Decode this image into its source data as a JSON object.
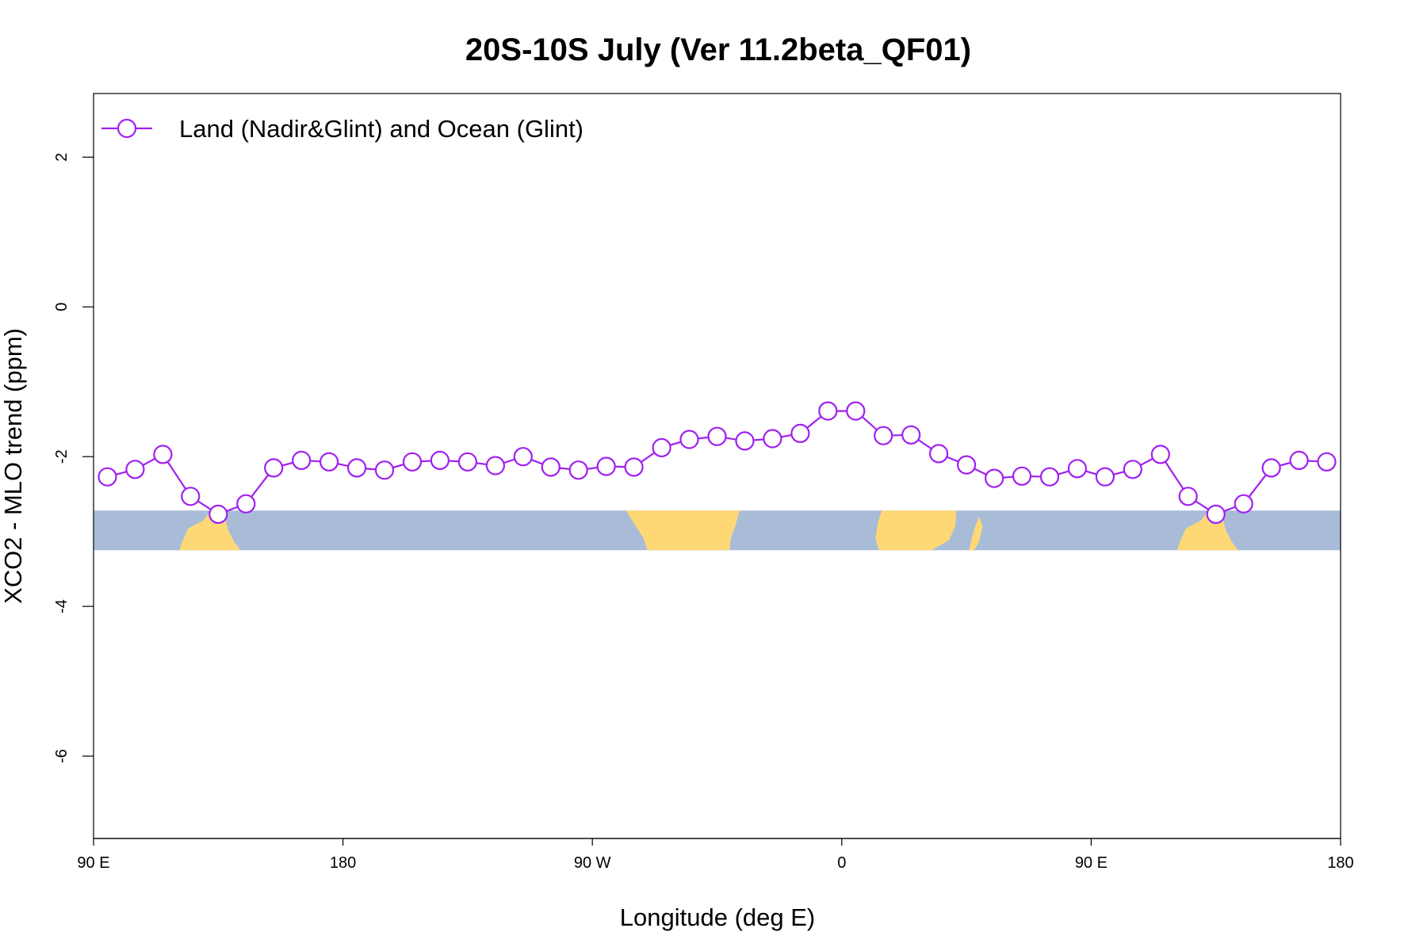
{
  "chart_data": {
    "type": "line",
    "title": "20S-10S July (Ver 11.2beta_QF01)",
    "xlabel": "Longitude (deg E)",
    "ylabel": "XCO2 - MLO trend (ppm)",
    "xlim": [
      90,
      540
    ],
    "ylim": [
      -7.1,
      2.85
    ],
    "xticks": [
      {
        "value": 90,
        "label": "90 E"
      },
      {
        "value": 180,
        "label": "180"
      },
      {
        "value": 270,
        "label": "90 W"
      },
      {
        "value": 360,
        "label": "0"
      },
      {
        "value": 450,
        "label": "90 E"
      },
      {
        "value": 540,
        "label": "180"
      }
    ],
    "yticks": [
      {
        "value": 2,
        "label": "2"
      },
      {
        "value": 0,
        "label": "0"
      },
      {
        "value": -2,
        "label": "-2"
      },
      {
        "value": -4,
        "label": "-4"
      },
      {
        "value": -6,
        "label": "-6"
      }
    ],
    "legend": {
      "position": "top-left",
      "label": "Land (Nadir&Glint) and Ocean (Glint)"
    },
    "series": [
      {
        "name": "Land (Nadir&Glint) and Ocean (Glint)",
        "color": "#a020f0",
        "marker": "open-circle",
        "x": [
          95,
          105,
          115,
          125,
          135,
          145,
          155,
          165,
          175,
          185,
          195,
          205,
          215,
          225,
          235,
          245,
          255,
          265,
          275,
          285,
          295,
          305,
          315,
          325,
          335,
          345,
          355,
          365,
          375,
          385,
          395,
          405,
          415,
          425,
          435,
          445,
          455,
          465,
          475,
          485,
          495,
          505,
          515,
          525,
          535
        ],
        "values": [
          -2.27,
          -2.17,
          -1.97,
          -2.53,
          -2.77,
          -2.63,
          -2.15,
          -2.05,
          -2.07,
          -2.15,
          -2.18,
          -2.07,
          -2.05,
          -2.07,
          -2.12,
          -2.0,
          -2.14,
          -2.18,
          -2.13,
          -2.14,
          -1.88,
          -1.77,
          -1.73,
          -1.79,
          -1.76,
          -1.69,
          -1.39,
          -1.39,
          -1.72,
          -1.71,
          -1.96,
          -2.11,
          -2.29,
          -2.26,
          -2.27,
          -2.16,
          -2.27,
          -2.17,
          -1.97,
          -2.53,
          -2.77,
          -2.63,
          -2.15,
          -2.05,
          -2.07
        ]
      }
    ],
    "land_strip": {
      "y_range": [
        -2.72,
        -3.25
      ],
      "ocean_color": "#a8bcd8",
      "land_color": "#ffd876"
    }
  }
}
